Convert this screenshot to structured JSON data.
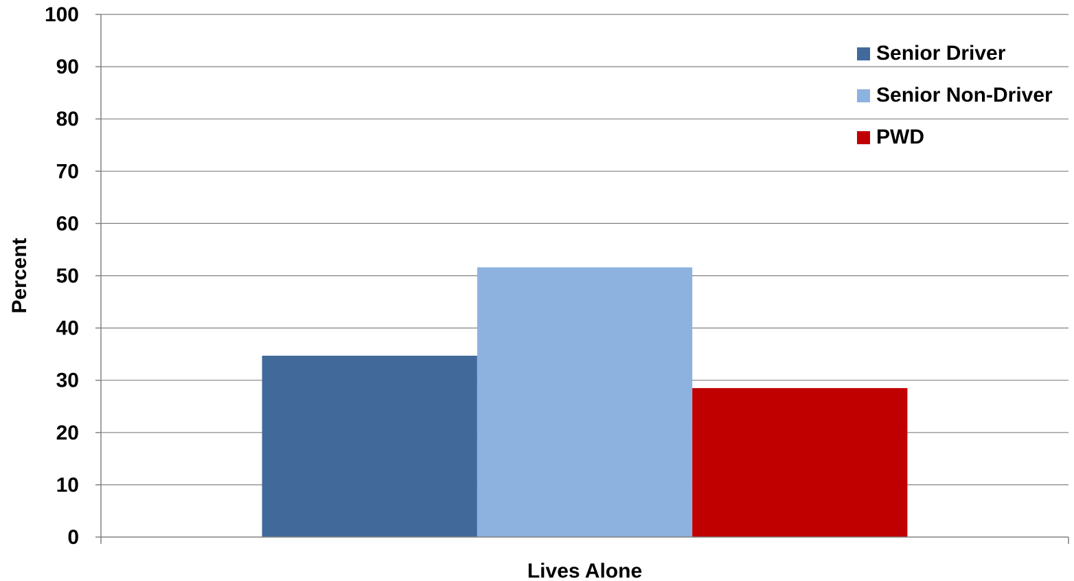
{
  "chart_data": {
    "type": "bar",
    "title": "",
    "categories": [
      "Lives Alone"
    ],
    "series": [
      {
        "name": "Senior Driver",
        "values": [
          34.7
        ],
        "color": "#416A9B"
      },
      {
        "name": "Senior Non-Driver",
        "values": [
          51.6
        ],
        "color": "#8EB2E0"
      },
      {
        "name": "PWD",
        "values": [
          28.5
        ],
        "color": "#C00000"
      }
    ],
    "xlabel": "Lives Alone",
    "ylabel": "Percent",
    "ylim": [
      0,
      100
    ],
    "yticks": [
      "0",
      "10",
      "20",
      "30",
      "40",
      "50",
      "60",
      "70",
      "80",
      "90",
      "100"
    ],
    "grid": true,
    "legend_position": "top-right"
  }
}
